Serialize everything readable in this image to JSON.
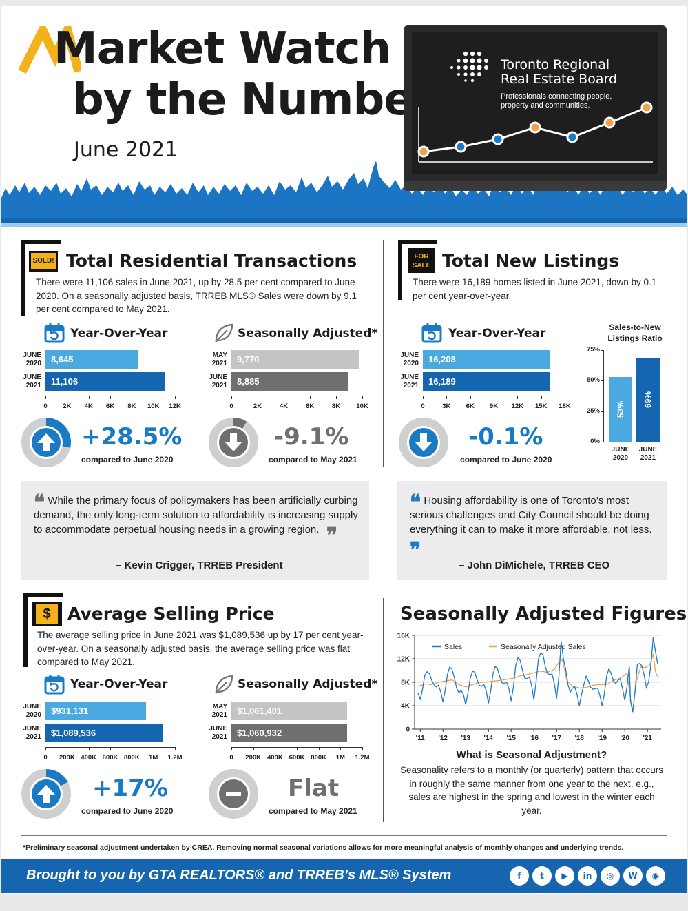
{
  "header": {
    "title_line1": "Market Watch",
    "title_line2": "by the Numbers",
    "date": "June 2021",
    "brand_line1": "Toronto Regional",
    "brand_line2": "Real Estate Board",
    "tagline": "Professionals connecting people, property and communities."
  },
  "transactions": {
    "sign": "SOLD!",
    "title": "Total Residential Transactions",
    "body": "There were 11,106 sales in June 2021, up by 28.5 per cent compared to June 2020. On a seasonally adjusted basis, TRREB MLS® Sales were down by 9.1 per cent compared to May 2021.",
    "yoy_title": "Year-Over-Year",
    "sa_title": "Seasonally Adjusted*",
    "yoy_rows": [
      {
        "label1": "JUNE",
        "label2": "2020",
        "value": 8645,
        "display": "8,645"
      },
      {
        "label1": "JUNE",
        "label2": "2021",
        "value": 11106,
        "display": "11,106"
      }
    ],
    "yoy_ticks": [
      "0",
      "2K",
      "4K",
      "6K",
      "8K",
      "10K",
      "12K"
    ],
    "sa_rows": [
      {
        "label1": "MAY",
        "label2": "2021",
        "value": 9770,
        "display": "9,770"
      },
      {
        "label1": "JUNE",
        "label2": "2021",
        "value": 8885,
        "display": "8,885"
      }
    ],
    "sa_ticks": [
      "0",
      "2K",
      "4K",
      "6K",
      "8K",
      "10K"
    ],
    "yoy_pct": "+28.5%",
    "yoy_cmp": "compared to June 2020",
    "yoy_gauge": 0.285,
    "sa_pct": "-9.1%",
    "sa_cmp": "compared to May 2021",
    "sa_gauge": 0.091
  },
  "listings": {
    "sign1": "FOR",
    "sign2": "SALE",
    "title": "Total New Listings",
    "body": "There were 16,189 homes listed in June 2021, down by 0.1 per cent year-over-year.",
    "yoy_title": "Year-Over-Year",
    "yoy_rows": [
      {
        "label1": "JUNE",
        "label2": "2020",
        "value": 16208,
        "display": "16,208"
      },
      {
        "label1": "JUNE",
        "label2": "2021",
        "value": 16189,
        "display": "16,189"
      }
    ],
    "yoy_ticks": [
      "0",
      "3K",
      "6K",
      "9K",
      "12K",
      "15K",
      "18K"
    ],
    "pct": "-0.1%",
    "cmp": "compared to June 2020",
    "gauge": 0.001,
    "ratio_title_1": "Sales-to-New",
    "ratio_title_2": "Listings Ratio",
    "ratio_ticks": [
      "75%",
      "50%",
      "25%",
      "0%"
    ],
    "ratio_bars": [
      {
        "label1": "JUNE",
        "label2": "2020",
        "value": 53,
        "display": "53%"
      },
      {
        "label1": "JUNE",
        "label2": "2021",
        "value": 69,
        "display": "69%"
      }
    ]
  },
  "quote1": {
    "text": "While the primary focus of policymakers has been artificially curbing demand, the only long-term solution to affordability is increasing supply to accommodate perpetual housing needs in a growing region.",
    "author": "– Kevin Crigger, TRREB President"
  },
  "quote2": {
    "text": "Housing affordability is one of Toronto’s most serious challenges and City Council should be doing everything it can to make it more affordable, not less.",
    "author": "– John DiMichele, TRREB CEO"
  },
  "price": {
    "sign": "$",
    "title": "Average Selling Price",
    "body": "The average selling price in June 2021 was $1,089,536 up by 17 per cent year-over-year. On a seasonally adjusted basis, the average selling price was flat compared to May 2021.",
    "yoy_title": "Year-Over-Year",
    "sa_title": "Seasonally Adjusted*",
    "yoy_rows": [
      {
        "label1": "JUNE",
        "label2": "2020",
        "value": 931131,
        "display": "$931,131"
      },
      {
        "label1": "JUNE",
        "label2": "2021",
        "value": 1089536,
        "display": "$1,089,536"
      }
    ],
    "sa_rows": [
      {
        "label1": "MAY",
        "label2": "2021",
        "value": 1061401,
        "display": "$1,061,401"
      },
      {
        "label1": "JUNE",
        "label2": "2021",
        "value": 1060932,
        "display": "$1,060,932"
      }
    ],
    "ticks": [
      "0",
      "200K",
      "400K",
      "600K",
      "800K",
      "1M",
      "1.2M"
    ],
    "yoy_pct": "+17%",
    "yoy_cmp": "compared to June 2020",
    "yoy_gauge": 0.17,
    "sa_pct": "Flat",
    "sa_cmp": "compared to May 2021"
  },
  "seasonal": {
    "title": "Seasonally Adjusted Figures",
    "sub_title": "What is Seasonal Adjustment?",
    "sub_body": "Seasonality refers to a monthly (or quarterly) pattern that occurs in roughly the same manner from one year to the next, e.g., sales are highest in the spring and lowest in the winter each year."
  },
  "chart_data": [
    {
      "type": "bar",
      "orientation": "horizontal",
      "categories": [
        "JUNE 2020",
        "JUNE 2021"
      ],
      "values": [
        8645,
        11106
      ],
      "xlim": [
        0,
        12000
      ]
    },
    {
      "type": "bar",
      "orientation": "horizontal",
      "categories": [
        "MAY 2021",
        "JUNE 2021"
      ],
      "values": [
        9770,
        8885
      ],
      "xlim": [
        0,
        10000
      ]
    },
    {
      "type": "bar",
      "orientation": "horizontal",
      "categories": [
        "JUNE 2020",
        "JUNE 2021"
      ],
      "values": [
        16208,
        16189
      ],
      "xlim": [
        0,
        18000
      ]
    },
    {
      "type": "bar",
      "title": "Sales-to-New Listings Ratio",
      "categories": [
        "JUNE 2020",
        "JUNE 2021"
      ],
      "values": [
        53,
        69
      ],
      "ylim": [
        0,
        75
      ]
    },
    {
      "type": "bar",
      "orientation": "horizontal",
      "categories": [
        "JUNE 2020",
        "JUNE 2021"
      ],
      "values": [
        931131,
        1089536
      ],
      "xlim": [
        0,
        1200000
      ]
    },
    {
      "type": "bar",
      "orientation": "horizontal",
      "categories": [
        "MAY 2021",
        "JUNE 2021"
      ],
      "values": [
        1061401,
        1060932
      ],
      "xlim": [
        0,
        1200000
      ]
    },
    {
      "type": "line",
      "title": "Seasonally Adjusted Figures",
      "x_ticks": [
        "'11",
        "'12",
        "'13",
        "'14",
        "'15",
        "'16",
        "'17",
        "'18",
        "'19",
        "'20",
        "'21"
      ],
      "y_ticks": [
        "0",
        "4K",
        "8K",
        "12K",
        "16K"
      ],
      "ylim": [
        0,
        16000
      ],
      "xlim": [
        2010.75,
        2021.6
      ],
      "grid": true,
      "legend_position": "top-left",
      "series": [
        {
          "name": "Sales",
          "color": "#1a7bc4",
          "values": [
            [
              2010.9,
              6200
            ],
            [
              2011.0,
              5100
            ],
            [
              2011.1,
              6800
            ],
            [
              2011.2,
              9200
            ],
            [
              2011.3,
              9800
            ],
            [
              2011.4,
              9500
            ],
            [
              2011.5,
              8400
            ],
            [
              2011.6,
              7600
            ],
            [
              2011.7,
              7200
            ],
            [
              2011.8,
              7500
            ],
            [
              2011.9,
              6400
            ],
            [
              2012.0,
              4600
            ],
            [
              2012.1,
              6700
            ],
            [
              2012.2,
              9400
            ],
            [
              2012.3,
              10600
            ],
            [
              2012.4,
              10200
            ],
            [
              2012.5,
              8800
            ],
            [
              2012.6,
              7000
            ],
            [
              2012.7,
              6200
            ],
            [
              2012.8,
              6600
            ],
            [
              2012.9,
              5900
            ],
            [
              2013.0,
              4200
            ],
            [
              2013.1,
              6200
            ],
            [
              2013.2,
              8700
            ],
            [
              2013.3,
              9900
            ],
            [
              2013.4,
              9700
            ],
            [
              2013.5,
              8400
            ],
            [
              2013.6,
              7500
            ],
            [
              2013.7,
              7300
            ],
            [
              2013.8,
              7600
            ],
            [
              2013.9,
              6600
            ],
            [
              2014.0,
              4400
            ],
            [
              2014.1,
              6500
            ],
            [
              2014.2,
              9400
            ],
            [
              2014.3,
              10700
            ],
            [
              2014.4,
              10300
            ],
            [
              2014.5,
              8900
            ],
            [
              2014.6,
              7900
            ],
            [
              2014.7,
              7800
            ],
            [
              2014.8,
              8000
            ],
            [
              2014.9,
              6900
            ],
            [
              2015.0,
              4800
            ],
            [
              2015.1,
              7200
            ],
            [
              2015.2,
              10800
            ],
            [
              2015.3,
              12200
            ],
            [
              2015.4,
              11700
            ],
            [
              2015.5,
              10000
            ],
            [
              2015.6,
              8700
            ],
            [
              2015.7,
              8600
            ],
            [
              2015.8,
              8900
            ],
            [
              2015.9,
              7500
            ],
            [
              2016.0,
              5000
            ],
            [
              2016.1,
              8100
            ],
            [
              2016.2,
              12000
            ],
            [
              2016.3,
              13000
            ],
            [
              2016.4,
              12700
            ],
            [
              2016.5,
              10700
            ],
            [
              2016.6,
              9500
            ],
            [
              2016.7,
              9300
            ],
            [
              2016.8,
              9400
            ],
            [
              2016.9,
              7800
            ],
            [
              2017.0,
              5200
            ],
            [
              2017.1,
              9000
            ],
            [
              2017.2,
              15000
            ],
            [
              2017.3,
              12000
            ],
            [
              2017.4,
              10200
            ],
            [
              2017.5,
              7600
            ],
            [
              2017.6,
              6300
            ],
            [
              2017.7,
              7000
            ],
            [
              2017.8,
              7200
            ],
            [
              2017.9,
              5900
            ],
            [
              2018.0,
              4000
            ],
            [
              2018.1,
              6000
            ],
            [
              2018.2,
              7600
            ],
            [
              2018.3,
              9000
            ],
            [
              2018.4,
              8200
            ],
            [
              2018.5,
              7100
            ],
            [
              2018.6,
              6800
            ],
            [
              2018.7,
              6900
            ],
            [
              2018.8,
              7000
            ],
            [
              2018.9,
              5800
            ],
            [
              2019.0,
              4000
            ],
            [
              2019.1,
              6000
            ],
            [
              2019.2,
              9000
            ],
            [
              2019.3,
              10300
            ],
            [
              2019.4,
              9500
            ],
            [
              2019.5,
              8200
            ],
            [
              2019.6,
              7800
            ],
            [
              2019.7,
              8300
            ],
            [
              2019.8,
              8600
            ],
            [
              2019.9,
              6900
            ],
            [
              2020.0,
              4900
            ],
            [
              2020.1,
              7300
            ],
            [
              2020.2,
              10800
            ],
            [
              2020.25,
              4800
            ],
            [
              2020.35,
              2900
            ],
            [
              2020.45,
              6500
            ],
            [
              2020.55,
              11000
            ],
            [
              2020.65,
              11200
            ],
            [
              2020.75,
              10800
            ],
            [
              2020.85,
              9200
            ],
            [
              2020.95,
              7100
            ],
            [
              2021.05,
              8100
            ],
            [
              2021.15,
              11000
            ],
            [
              2021.25,
              15700
            ],
            [
              2021.35,
              13200
            ],
            [
              2021.45,
              11100
            ]
          ]
        },
        {
          "name": "Seasonally Adjusted Sales",
          "color": "#f0a24a",
          "values": [
            [
              2010.9,
              7300
            ],
            [
              2011.2,
              7700
            ],
            [
              2011.5,
              7600
            ],
            [
              2011.8,
              8000
            ],
            [
              2012.1,
              8200
            ],
            [
              2012.4,
              8400
            ],
            [
              2012.7,
              7600
            ],
            [
              2013.0,
              7200
            ],
            [
              2013.3,
              7600
            ],
            [
              2013.6,
              8000
            ],
            [
              2013.9,
              8000
            ],
            [
              2014.2,
              8200
            ],
            [
              2014.5,
              8300
            ],
            [
              2014.8,
              8500
            ],
            [
              2015.1,
              8700
            ],
            [
              2015.4,
              9100
            ],
            [
              2015.7,
              9300
            ],
            [
              2016.0,
              9600
            ],
            [
              2016.3,
              9900
            ],
            [
              2016.6,
              9700
            ],
            [
              2016.9,
              10200
            ],
            [
              2017.1,
              11400
            ],
            [
              2017.25,
              11900
            ],
            [
              2017.45,
              8300
            ],
            [
              2017.7,
              7300
            ],
            [
              2018.0,
              7000
            ],
            [
              2018.3,
              7100
            ],
            [
              2018.6,
              7500
            ],
            [
              2018.9,
              7600
            ],
            [
              2019.2,
              7600
            ],
            [
              2019.5,
              8300
            ],
            [
              2019.8,
              8700
            ],
            [
              2020.1,
              9500
            ],
            [
              2020.25,
              5200
            ],
            [
              2020.35,
              3100
            ],
            [
              2020.5,
              8000
            ],
            [
              2020.7,
              10600
            ],
            [
              2020.9,
              10500
            ],
            [
              2021.1,
              10900
            ],
            [
              2021.25,
              12800
            ],
            [
              2021.35,
              9800
            ],
            [
              2021.45,
              8900
            ]
          ]
        }
      ]
    }
  ],
  "footnote": "*Preliminary seasonal adjustment undertaken by CREA. Removing normal seasonal variations allows for more meaningful analysis of monthly changes and underlying trends.",
  "footer": {
    "text": "Brought to you by GTA REALTORS® and TRREB’s MLS® System",
    "social": [
      {
        "icon": "facebook-icon",
        "glyph": "f"
      },
      {
        "icon": "twitter-icon",
        "glyph": "t"
      },
      {
        "icon": "youtube-icon",
        "glyph": "▶"
      },
      {
        "icon": "linkedin-icon",
        "glyph": "in"
      },
      {
        "icon": "instagram-icon",
        "glyph": "◎"
      },
      {
        "icon": "wordpress-icon",
        "glyph": "W"
      },
      {
        "icon": "podcast-icon",
        "glyph": "◉"
      }
    ]
  },
  "colors": {
    "blue_light": "#4aa9e0",
    "blue_dark": "#1565b0",
    "grey_light": "#c4c4c4",
    "grey_dark": "#6f6f6f",
    "orange": "#f0a24a",
    "gold": "#f3b21a"
  }
}
